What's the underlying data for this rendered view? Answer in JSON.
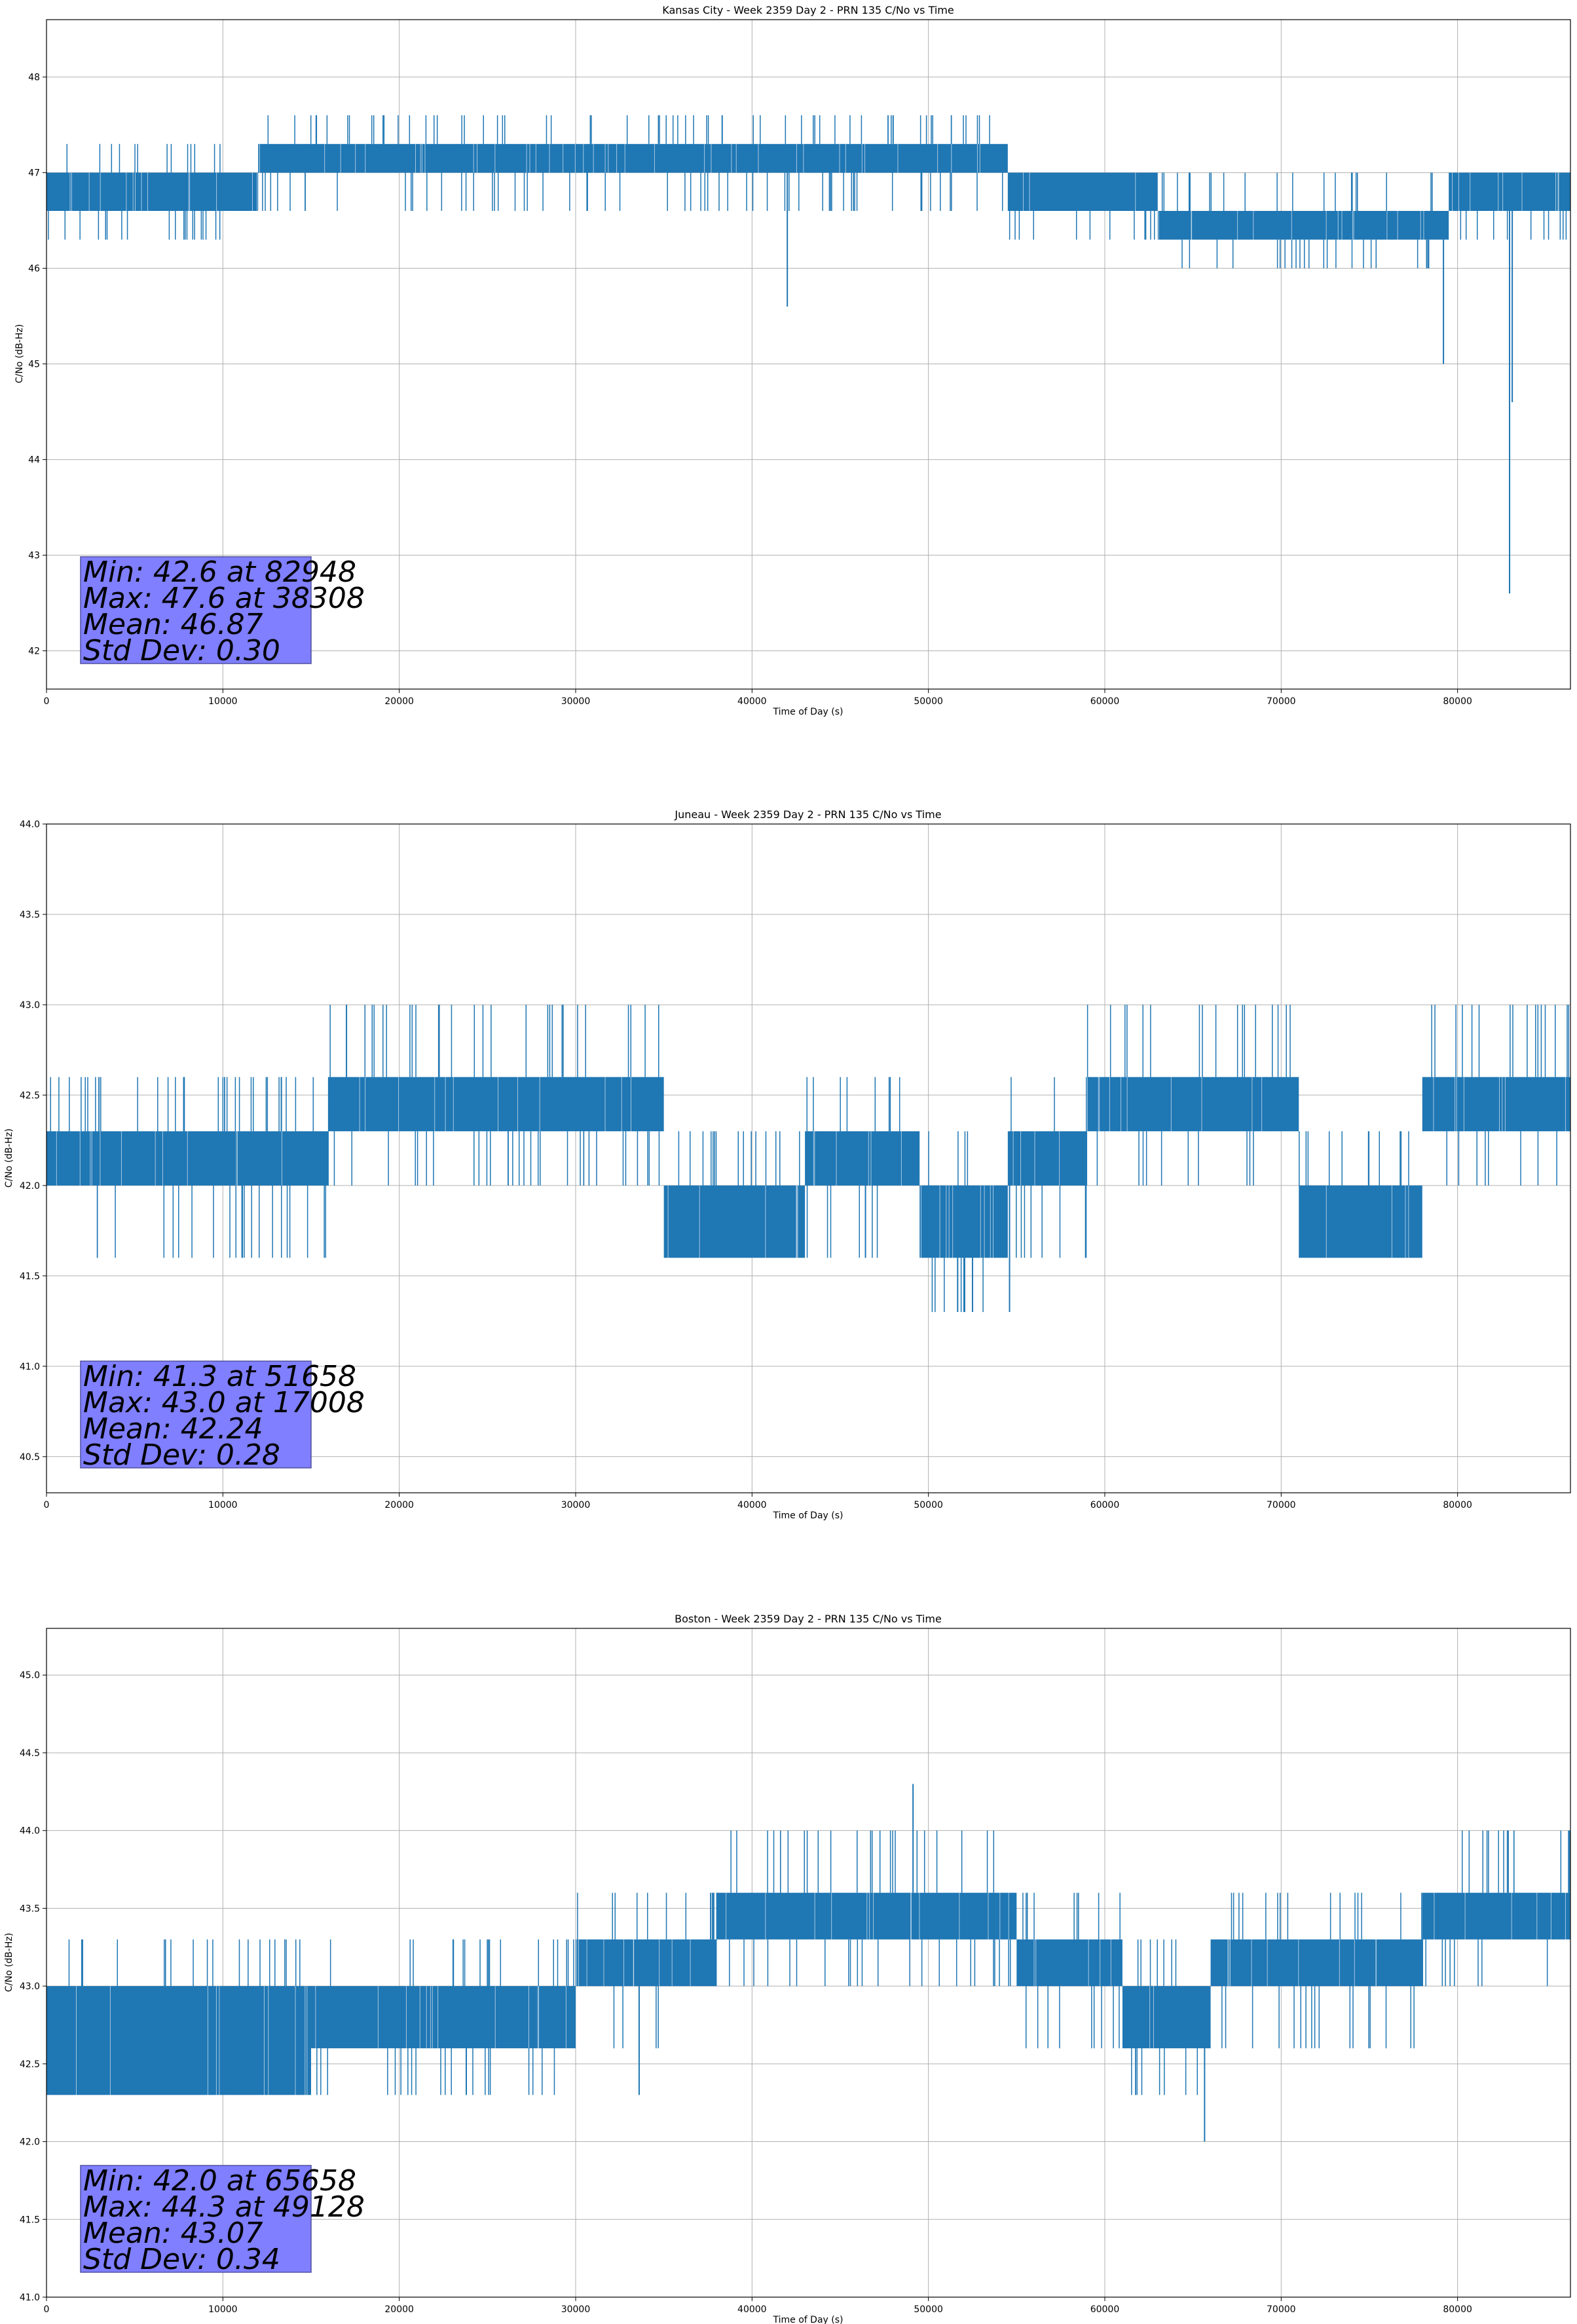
{
  "chart_data": [
    {
      "type": "line",
      "title": "Kansas City - Week 2359 Day 2 - PRN 135 C/No vs Time",
      "xlabel": "Time of Day (s)",
      "ylabel": "C/No (dB-Hz)",
      "xlim": [
        0,
        86400
      ],
      "ylim": [
        41.6,
        48.6
      ],
      "xticks": [
        0,
        10000,
        20000,
        30000,
        40000,
        50000,
        60000,
        70000,
        80000
      ],
      "yticks": [
        42,
        43,
        44,
        45,
        46,
        47,
        48
      ],
      "ytick_labels": [
        "42",
        "43",
        "44",
        "45",
        "46",
        "47",
        "48"
      ],
      "grid": true,
      "series_color": "#1f77b4",
      "segments": [
        {
          "x0": 0,
          "x1": 12000,
          "base": 47.0,
          "low": 46.6,
          "high": 47.0,
          "spike_up": 47.3,
          "spike_down": 46.3
        },
        {
          "x0": 12000,
          "x1": 54500,
          "base": 47.0,
          "low": 47.0,
          "high": 47.3,
          "spike_up": 47.6,
          "spike_down": 46.6
        },
        {
          "x0": 54500,
          "x1": 63000,
          "base": 46.6,
          "low": 46.6,
          "high": 47.0,
          "spike_up": 47.0,
          "spike_down": 46.3
        },
        {
          "x0": 63000,
          "x1": 79500,
          "base": 46.6,
          "low": 46.3,
          "high": 46.6,
          "spike_up": 47.0,
          "spike_down": 46.0
        },
        {
          "x0": 79500,
          "x1": 86400,
          "base": 46.6,
          "low": 46.6,
          "high": 47.0,
          "spike_up": 47.0,
          "spike_down": 46.3
        }
      ],
      "events": [
        {
          "x": 38308,
          "y": 47.6
        },
        {
          "x": 48000,
          "y": 47.6
        },
        {
          "x": 42000,
          "y": 45.6
        },
        {
          "x": 79200,
          "y": 45.0
        },
        {
          "x": 82948,
          "y": 42.6
        },
        {
          "x": 83100,
          "y": 44.6
        }
      ],
      "stats": [
        "Min: 42.6 at 82948",
        "Max: 47.6 at 38308",
        "Mean: 46.87",
        "Std Dev: 0.30"
      ]
    },
    {
      "type": "line",
      "title": "Juneau - Week 2359 Day 2 - PRN 135 C/No vs Time",
      "xlabel": "Time of Day (s)",
      "ylabel": "C/No (dB-Hz)",
      "xlim": [
        0,
        86400
      ],
      "ylim": [
        40.3,
        44.0
      ],
      "xticks": [
        0,
        10000,
        20000,
        30000,
        40000,
        50000,
        60000,
        70000,
        80000
      ],
      "yticks": [
        40.5,
        41.0,
        41.5,
        42.0,
        42.5,
        43.0,
        43.5,
        44.0
      ],
      "ytick_labels": [
        "40.5",
        "41.0",
        "41.5",
        "42.0",
        "42.5",
        "43.0",
        "43.5",
        "44.0"
      ],
      "grid": true,
      "series_color": "#1f77b4",
      "segments": [
        {
          "x0": 0,
          "x1": 16000,
          "base": 42.0,
          "low": 42.0,
          "high": 42.3,
          "spike_up": 42.6,
          "spike_down": 41.6
        },
        {
          "x0": 16000,
          "x1": 35000,
          "base": 42.3,
          "low": 42.3,
          "high": 42.6,
          "spike_up": 43.0,
          "spike_down": 42.0
        },
        {
          "x0": 35000,
          "x1": 43000,
          "base": 42.0,
          "low": 41.6,
          "high": 42.0,
          "spike_up": 42.3,
          "spike_down": 41.6
        },
        {
          "x0": 43000,
          "x1": 49500,
          "base": 42.0,
          "low": 42.0,
          "high": 42.3,
          "spike_up": 42.6,
          "spike_down": 41.6
        },
        {
          "x0": 49500,
          "x1": 54500,
          "base": 42.0,
          "low": 41.6,
          "high": 42.0,
          "spike_up": 42.3,
          "spike_down": 41.3
        },
        {
          "x0": 54500,
          "x1": 59000,
          "base": 42.0,
          "low": 42.0,
          "high": 42.3,
          "spike_up": 42.6,
          "spike_down": 41.6
        },
        {
          "x0": 59000,
          "x1": 71000,
          "base": 42.3,
          "low": 42.3,
          "high": 42.6,
          "spike_up": 43.0,
          "spike_down": 42.0
        },
        {
          "x0": 71000,
          "x1": 78000,
          "base": 42.0,
          "low": 41.6,
          "high": 42.0,
          "spike_up": 42.3,
          "spike_down": 41.6
        },
        {
          "x0": 78000,
          "x1": 86400,
          "base": 42.3,
          "low": 42.3,
          "high": 42.6,
          "spike_up": 43.0,
          "spike_down": 42.0
        }
      ],
      "events": [
        {
          "x": 17008,
          "y": 43.0
        },
        {
          "x": 51658,
          "y": 41.3
        },
        {
          "x": 52500,
          "y": 41.3
        },
        {
          "x": 54600,
          "y": 41.3
        }
      ],
      "stats": [
        "Min: 41.3 at 51658",
        "Max: 43.0 at 17008",
        "Mean: 42.24",
        "Std Dev: 0.28"
      ]
    },
    {
      "type": "line",
      "title": "Boston - Week 2359 Day 2 - PRN 135 C/No vs Time",
      "xlabel": "Time of Day (s)",
      "ylabel": "C/No (dB-Hz)",
      "xlim": [
        0,
        86400
      ],
      "ylim": [
        41.0,
        45.3
      ],
      "xticks": [
        0,
        10000,
        20000,
        30000,
        40000,
        50000,
        60000,
        70000,
        80000
      ],
      "yticks": [
        41.0,
        41.5,
        42.0,
        42.5,
        43.0,
        43.5,
        44.0,
        44.5,
        45.0
      ],
      "ytick_labels": [
        "41.0",
        "41.5",
        "42.0",
        "42.5",
        "43.0",
        "43.5",
        "44.0",
        "44.5",
        "45.0"
      ],
      "grid": true,
      "series_color": "#1f77b4",
      "segments": [
        {
          "x0": 0,
          "x1": 15000,
          "base": 42.6,
          "low": 42.3,
          "high": 43.0,
          "spike_up": 43.3,
          "spike_down": 42.3
        },
        {
          "x0": 15000,
          "x1": 30000,
          "base": 42.6,
          "low": 42.6,
          "high": 43.0,
          "spike_up": 43.3,
          "spike_down": 42.3
        },
        {
          "x0": 30000,
          "x1": 38000,
          "base": 43.0,
          "low": 43.0,
          "high": 43.3,
          "spike_up": 43.6,
          "spike_down": 42.6
        },
        {
          "x0": 38000,
          "x1": 55000,
          "base": 43.3,
          "low": 43.3,
          "high": 43.6,
          "spike_up": 44.0,
          "spike_down": 43.0
        },
        {
          "x0": 55000,
          "x1": 61000,
          "base": 43.0,
          "low": 43.0,
          "high": 43.3,
          "spike_up": 43.6,
          "spike_down": 42.6
        },
        {
          "x0": 61000,
          "x1": 66000,
          "base": 42.6,
          "low": 42.6,
          "high": 43.0,
          "spike_up": 43.3,
          "spike_down": 42.3
        },
        {
          "x0": 66000,
          "x1": 78000,
          "base": 43.0,
          "low": 43.0,
          "high": 43.3,
          "spike_up": 43.6,
          "spike_down": 42.6
        },
        {
          "x0": 78000,
          "x1": 86400,
          "base": 43.3,
          "low": 43.3,
          "high": 43.6,
          "spike_up": 44.0,
          "spike_down": 43.0
        }
      ],
      "events": [
        {
          "x": 49128,
          "y": 44.3
        },
        {
          "x": 65658,
          "y": 42.0
        },
        {
          "x": 23800,
          "y": 42.3
        },
        {
          "x": 33600,
          "y": 42.3
        },
        {
          "x": 86300,
          "y": 44.0
        }
      ],
      "stats": [
        "Min: 42.0 at 65658",
        "Max: 44.3 at 49128",
        "Mean: 43.07",
        "Std Dev: 0.34"
      ]
    }
  ]
}
